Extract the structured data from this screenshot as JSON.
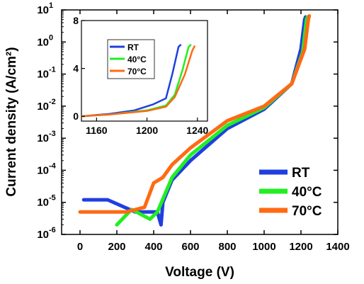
{
  "chart_data": [
    {
      "type": "line",
      "xlabel": "Voltage (V)",
      "ylabel": "Current density (A/cm²)",
      "xlim": [
        -100,
        1400
      ],
      "ylim": [
        1e-06,
        10
      ],
      "yscale": "log",
      "x_ticks": [
        "0",
        "200",
        "400",
        "600",
        "800",
        "1000",
        "1200",
        "1400"
      ],
      "y_ticks": [
        "10-6",
        "10-5",
        "10-4",
        "10-3",
        "10-2",
        "10-1",
        "100",
        "101"
      ],
      "legend": {
        "placement": "bottom-right",
        "entries": [
          "RT",
          "40°C",
          "70°C"
        ]
      },
      "series": [
        {
          "name": "RT",
          "color": "#1f3fe0",
          "x": [
            20,
            150,
            300,
            420,
            440,
            450,
            500,
            600,
            800,
            1000,
            1150,
            1200,
            1220,
            1225
          ],
          "y": [
            1.2e-05,
            1.2e-05,
            5e-06,
            5e-06,
            2e-06,
            1e-05,
            5e-05,
            0.0002,
            0.002,
            0.008,
            0.05,
            0.6,
            5,
            6
          ]
        },
        {
          "name": "40°C",
          "color": "#22ee22",
          "x": [
            200,
            280,
            380,
            420,
            500,
            600,
            800,
            1000,
            1150,
            1210,
            1230,
            1235
          ],
          "y": [
            2e-06,
            6e-06,
            3e-06,
            5e-06,
            6e-05,
            0.0003,
            0.0025,
            0.009,
            0.05,
            0.5,
            5,
            6
          ]
        },
        {
          "name": "70°C",
          "color": "#ff6a13",
          "x": [
            0,
            100,
            250,
            350,
            400,
            450,
            500,
            600,
            800,
            1000,
            1150,
            1220,
            1240,
            1245
          ],
          "y": [
            5e-06,
            5e-06,
            5e-06,
            7e-06,
            4e-05,
            6e-05,
            0.00015,
            0.0005,
            0.0035,
            0.01,
            0.05,
            0.6,
            5,
            6.5
          ]
        }
      ]
    },
    {
      "type": "line",
      "xlim": [
        1148,
        1248
      ],
      "ylim": [
        -0.4,
        8
      ],
      "x_ticks": [
        "1160",
        "1200",
        "1240"
      ],
      "y_ticks": [
        "0",
        "4",
        "8"
      ],
      "legend": {
        "placement": "top-left",
        "entries": [
          "RT",
          "40°C",
          "70°C"
        ]
      },
      "series": [
        {
          "name": "RT",
          "color": "#1f3fe0",
          "x": [
            1148,
            1170,
            1190,
            1205,
            1215,
            1220,
            1225,
            1227
          ],
          "y": [
            0,
            0.2,
            0.5,
            1.0,
            1.5,
            3.5,
            5.8,
            6.0
          ]
        },
        {
          "name": "40°C",
          "color": "#22ee22",
          "x": [
            1148,
            1170,
            1200,
            1215,
            1222,
            1228,
            1233,
            1235
          ],
          "y": [
            0,
            0.15,
            0.5,
            0.9,
            1.8,
            3.8,
            5.8,
            6.0
          ]
        },
        {
          "name": "70°C",
          "color": "#ff6a13",
          "x": [
            1148,
            1170,
            1200,
            1215,
            1222,
            1230,
            1236,
            1238
          ],
          "y": [
            0,
            0.15,
            0.45,
            0.8,
            1.6,
            3.5,
            5.5,
            5.9
          ]
        }
      ]
    }
  ]
}
